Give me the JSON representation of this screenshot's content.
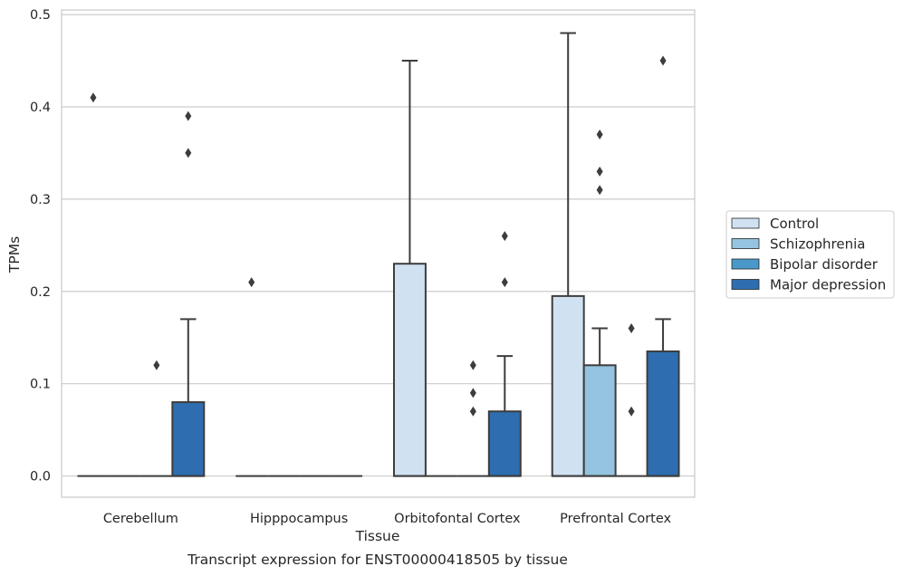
{
  "chart_data": {
    "type": "box",
    "title": "Transcript expression for ENST00000418505 by tissue",
    "xlabel": "Tissue",
    "ylabel": "TPMs",
    "ylim": [
      -0.023,
      0.505
    ],
    "yticks": [
      "0.0",
      "0.1",
      "0.2",
      "0.3",
      "0.4",
      "0.5"
    ],
    "grid": true,
    "legend_position": "right",
    "categories": [
      "Cerebellum",
      "Hipppocampus",
      "Orbitofontal Cortex",
      "Prefrontal Cortex"
    ],
    "series": [
      {
        "name": "Control",
        "color": "#d0e1f2",
        "boxes": [
          {
            "q1": 0,
            "median": 0,
            "q3": 0,
            "whisker_low": 0,
            "whisker_high": 0,
            "outliers": [
              0.41
            ]
          },
          {
            "q1": 0,
            "median": 0,
            "q3": 0,
            "whisker_low": 0,
            "whisker_high": 0,
            "outliers": [
              0.21
            ]
          },
          {
            "q1": 0,
            "median": 0,
            "q3": 0.23,
            "whisker_low": 0,
            "whisker_high": 0.45,
            "outliers": []
          },
          {
            "q1": 0,
            "median": 0,
            "q3": 0.195,
            "whisker_low": 0,
            "whisker_high": 0.48,
            "outliers": []
          }
        ]
      },
      {
        "name": "Schizophrenia",
        "color": "#94c4df",
        "boxes": [
          {
            "q1": 0,
            "median": 0,
            "q3": 0,
            "whisker_low": 0,
            "whisker_high": 0,
            "outliers": []
          },
          {
            "q1": 0,
            "median": 0,
            "q3": 0,
            "whisker_low": 0,
            "whisker_high": 0,
            "outliers": []
          },
          {
            "q1": 0,
            "median": 0,
            "q3": 0,
            "whisker_low": 0,
            "whisker_high": 0,
            "outliers": []
          },
          {
            "q1": 0,
            "median": 0,
            "q3": 0.12,
            "whisker_low": 0,
            "whisker_high": 0.16,
            "outliers": [
              0.31,
              0.33,
              0.37
            ]
          }
        ]
      },
      {
        "name": "Bipolar disorder",
        "color": "#4a98c9",
        "boxes": [
          {
            "q1": 0,
            "median": 0,
            "q3": 0,
            "whisker_low": 0,
            "whisker_high": 0,
            "outliers": [
              0.12
            ]
          },
          {
            "q1": 0,
            "median": 0,
            "q3": 0,
            "whisker_low": 0,
            "whisker_high": 0,
            "outliers": []
          },
          {
            "q1": 0,
            "median": 0,
            "q3": 0,
            "whisker_low": 0,
            "whisker_high": 0,
            "outliers": [
              0.07,
              0.09,
              0.12
            ]
          },
          {
            "q1": 0,
            "median": 0,
            "q3": 0,
            "whisker_low": 0,
            "whisker_high": 0,
            "outliers": [
              0.07,
              0.16
            ]
          }
        ]
      },
      {
        "name": "Major depression",
        "color": "#2e6eb0",
        "boxes": [
          {
            "q1": 0,
            "median": 0,
            "q3": 0.08,
            "whisker_low": 0,
            "whisker_high": 0.17,
            "outliers": [
              0.35,
              0.39
            ]
          },
          {
            "q1": 0,
            "median": 0,
            "q3": 0,
            "whisker_low": 0,
            "whisker_high": 0,
            "outliers": []
          },
          {
            "q1": 0,
            "median": 0,
            "q3": 0.07,
            "whisker_low": 0,
            "whisker_high": 0.13,
            "outliers": [
              0.21,
              0.26
            ]
          },
          {
            "q1": 0,
            "median": 0,
            "q3": 0.135,
            "whisker_low": 0,
            "whisker_high": 0.17,
            "outliers": [
              0.45
            ]
          }
        ]
      }
    ]
  }
}
